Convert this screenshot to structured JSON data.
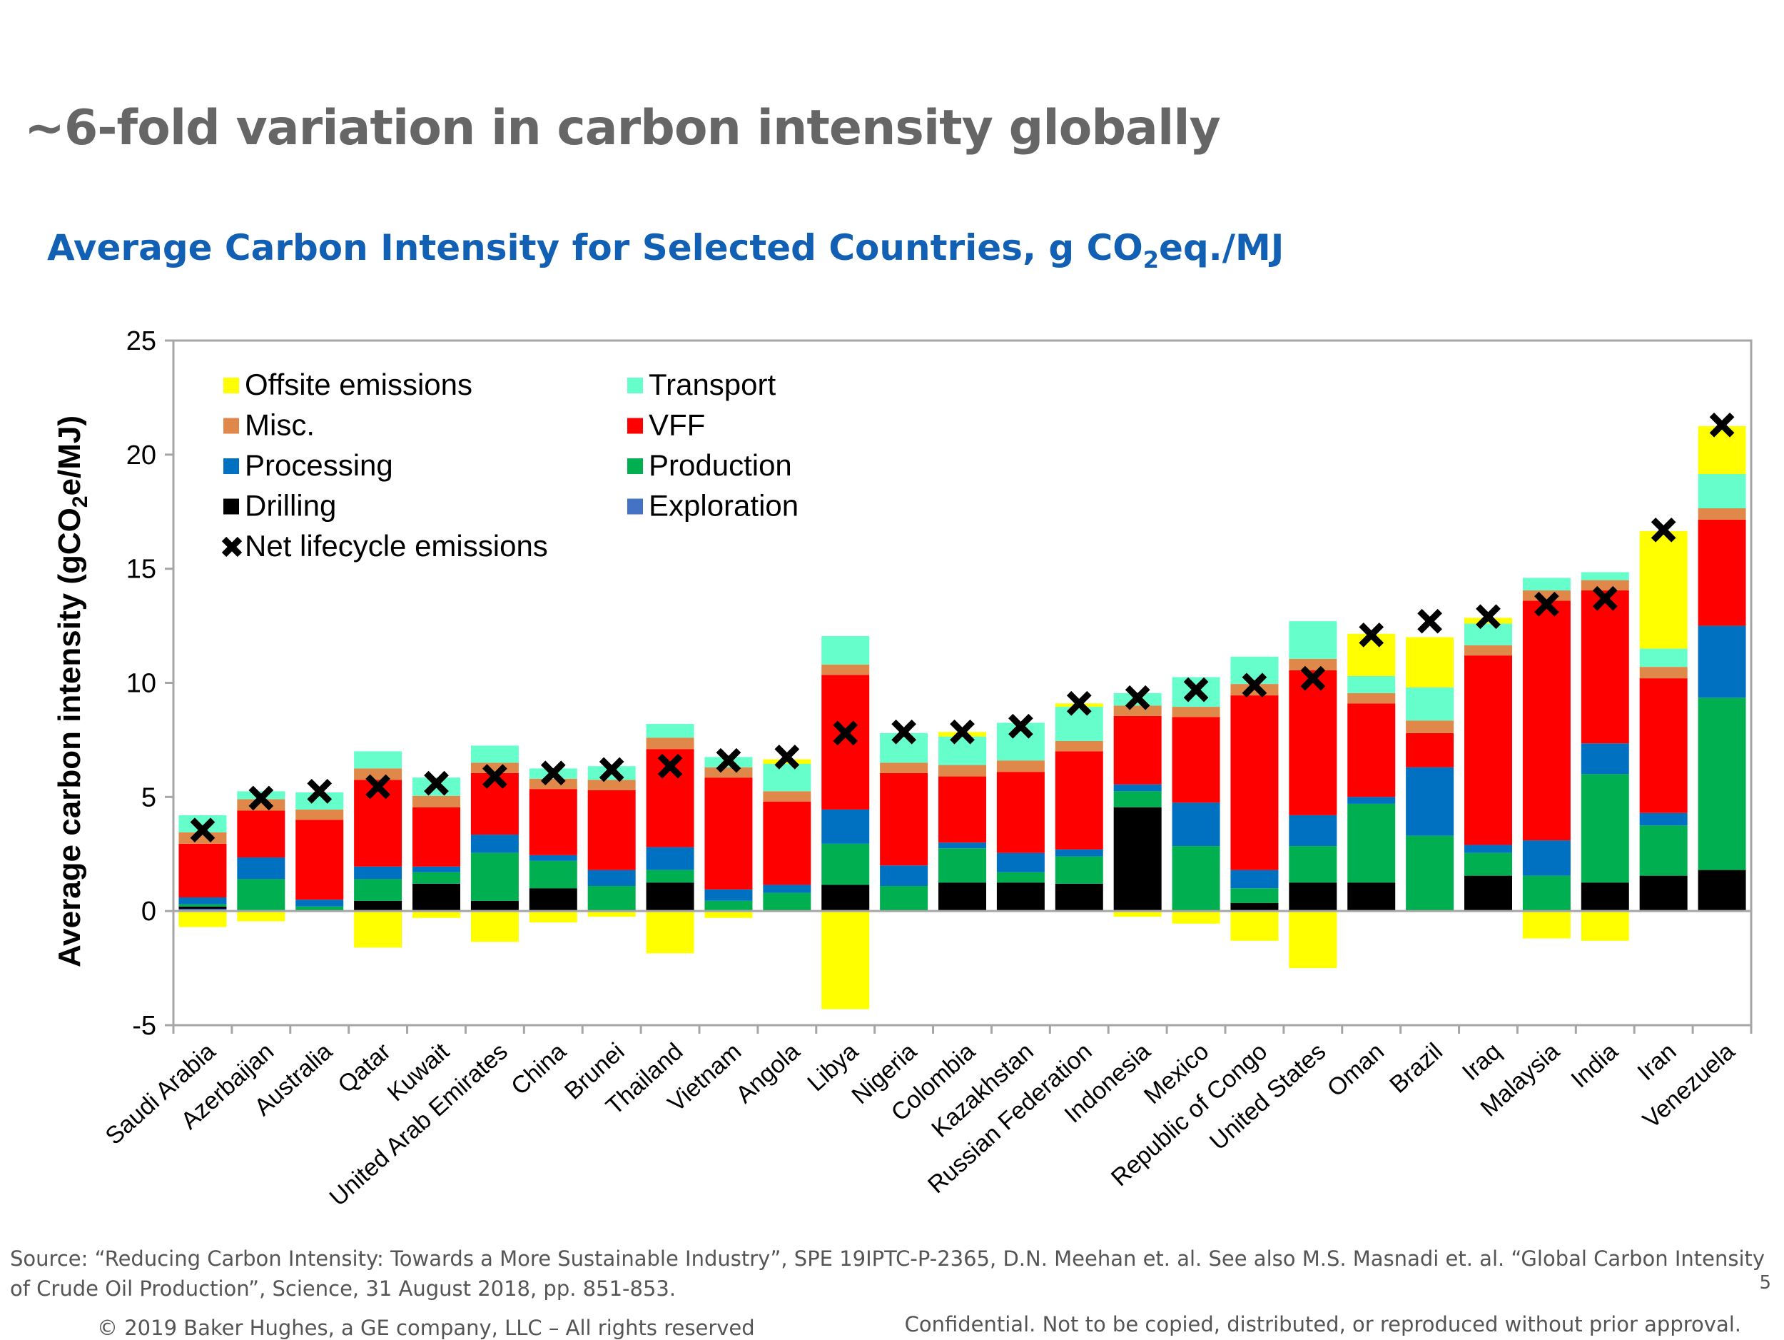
{
  "slide": {
    "title": "~6-fold variation in carbon intensity globally",
    "chart_heading_pre": "Average Carbon Intensity for Selected Countries, g CO",
    "chart_heading_sub": "2",
    "chart_heading_post": "eq./MJ",
    "source_note": "Source: “Reducing Carbon Intensity: Towards a More Sustainable Industry”, SPE 19IPTC-P-2365, D.N. Meehan et. al. See also M.S. Masnadi et. al. “Global Carbon Intensity of Crude Oil Production”, Science, 31 August 2018, pp. 851-853.",
    "copyright": "© 2019 Baker Hughes, a GE company, LLC – All rights reserved",
    "confidential": "Confidential. Not to be copied, distributed, or reproduced without prior approval.",
    "page_number": "5"
  },
  "chart_data": {
    "type": "bar",
    "stacked": true,
    "ylabel_pre": "Average carbon intensity (gCO",
    "ylabel_sub": "2",
    "ylabel_post": "e/MJ)",
    "ylim": [
      -5,
      25
    ],
    "yticks": [
      -5,
      0,
      5,
      10,
      15,
      20,
      25
    ],
    "grid": false,
    "legend_position": "top-left",
    "categories": [
      "Saudi Arabia",
      "Azerbaijan",
      "Australia",
      "Qatar",
      "Kuwait",
      "United Arab Emirates",
      "China",
      "Brunei",
      "Thailand",
      "Vietnam",
      "Angola",
      "Libya",
      "Nigeria",
      "Colombia",
      "Kazakhstan",
      "Russian Federation",
      "Indonesia",
      "Mexico",
      "Republic of Congo",
      "United States",
      "Oman",
      "Brazil",
      "Iraq",
      "Malaysia",
      "India",
      "Iran",
      "Venezuela"
    ],
    "series": [
      {
        "name": "Exploration",
        "color": "#4472c4",
        "values": [
          0.1,
          0,
          0,
          0,
          0,
          0,
          0,
          0,
          0,
          0,
          0,
          0,
          0,
          0,
          0,
          0,
          0,
          0,
          0,
          0,
          0,
          0,
          0,
          0,
          0,
          0,
          0
        ]
      },
      {
        "name": "Drilling",
        "color": "#000000",
        "values": [
          0.1,
          0,
          0.05,
          0.45,
          1.2,
          0.45,
          1.0,
          0.05,
          1.25,
          0,
          0.05,
          1.15,
          0.05,
          1.25,
          1.25,
          1.2,
          4.55,
          0.05,
          0.35,
          1.25,
          1.25,
          0.05,
          1.55,
          0.05,
          1.25,
          1.55,
          1.8
        ]
      },
      {
        "name": "Production",
        "color": "#00b050",
        "values": [
          0.1,
          1.4,
          0.15,
          0.95,
          0.5,
          2.1,
          1.2,
          1.05,
          0.55,
          0.45,
          0.75,
          1.8,
          1.05,
          1.5,
          0.45,
          1.2,
          0.7,
          2.8,
          0.65,
          1.6,
          3.45,
          3.25,
          1.0,
          1.5,
          4.75,
          2.2,
          7.55
        ]
      },
      {
        "name": "Processing",
        "color": "#0070c0",
        "values": [
          0.3,
          0.95,
          0.3,
          0.55,
          0.25,
          0.8,
          0.25,
          0.7,
          1.0,
          0.5,
          0.35,
          1.5,
          0.9,
          0.25,
          0.85,
          0.3,
          0.3,
          1.9,
          0.8,
          1.35,
          0.3,
          3.0,
          0.35,
          1.55,
          1.35,
          0.55,
          3.15
        ]
      },
      {
        "name": "VFF",
        "color": "#ff0000",
        "values": [
          2.35,
          2.05,
          3.5,
          3.8,
          2.6,
          2.7,
          2.9,
          3.5,
          4.3,
          4.9,
          3.65,
          5.9,
          4.05,
          2.9,
          3.55,
          4.3,
          3.0,
          3.75,
          7.65,
          6.35,
          4.1,
          1.5,
          8.3,
          10.5,
          6.7,
          5.9,
          4.65
        ]
      },
      {
        "name": "Misc.",
        "color": "#e0884a",
        "values": [
          0.5,
          0.5,
          0.45,
          0.5,
          0.5,
          0.45,
          0.45,
          0.45,
          0.5,
          0.45,
          0.45,
          0.45,
          0.45,
          0.5,
          0.5,
          0.45,
          0.45,
          0.45,
          0.5,
          0.5,
          0.45,
          0.55,
          0.45,
          0.45,
          0.45,
          0.5,
          0.5
        ]
      },
      {
        "name": "Transport",
        "color": "#66ffcc",
        "values": [
          0.75,
          0.35,
          0.75,
          0.75,
          0.8,
          0.75,
          0.45,
          0.6,
          0.6,
          0.45,
          1.2,
          1.25,
          1.3,
          1.25,
          1.65,
          1.5,
          0.55,
          1.3,
          1.2,
          1.65,
          0.75,
          1.45,
          0.95,
          0.55,
          0.35,
          0.8,
          1.5
        ]
      },
      {
        "name": "Offsite emissions",
        "color": "#ffff00",
        "values": [
          -0.7,
          -0.45,
          0,
          -1.6,
          -0.3,
          -1.35,
          -0.5,
          -0.25,
          -1.85,
          -0.3,
          0.2,
          -4.3,
          0,
          0.2,
          0,
          0.15,
          -0.25,
          -0.55,
          -1.3,
          -2.5,
          1.85,
          2.2,
          0.25,
          -1.2,
          -1.3,
          5.15,
          2.1
        ]
      }
    ],
    "net_lifecycle_emissions": {
      "name": "Net lifecycle emissions",
      "values": [
        3.55,
        4.95,
        5.25,
        5.45,
        5.6,
        5.9,
        6.05,
        6.2,
        6.35,
        6.6,
        6.75,
        7.8,
        7.85,
        7.85,
        8.1,
        9.1,
        9.35,
        9.7,
        9.9,
        10.2,
        12.1,
        12.7,
        12.9,
        13.45,
        13.7,
        16.7,
        21.3
      ]
    },
    "legend": [
      {
        "name": "Offsite emissions",
        "color": "#ffff00",
        "marker": "square"
      },
      {
        "name": "Transport",
        "color": "#66ffcc",
        "marker": "square"
      },
      {
        "name": "Misc.",
        "color": "#e0884a",
        "marker": "square"
      },
      {
        "name": "VFF",
        "color": "#ff0000",
        "marker": "square"
      },
      {
        "name": "Processing",
        "color": "#0070c0",
        "marker": "square"
      },
      {
        "name": "Production",
        "color": "#00b050",
        "marker": "square"
      },
      {
        "name": "Drilling",
        "color": "#000000",
        "marker": "square"
      },
      {
        "name": "Exploration",
        "color": "#4472c4",
        "marker": "square"
      },
      {
        "name": "Net lifecycle emissions",
        "color": "#000000",
        "marker": "cross"
      }
    ]
  }
}
